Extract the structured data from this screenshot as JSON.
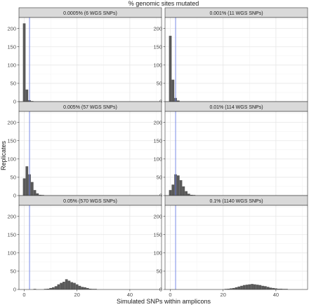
{
  "chart_data": {
    "type": "bar",
    "chart_kind": "faceted-histogram",
    "title": "% genomic sites mutated",
    "xlabel": "Simulated SNPs within amplicons",
    "ylabel": "Replicates",
    "xlim": [
      -2,
      52
    ],
    "ylim": [
      0,
      230
    ],
    "x_ticks": [
      0,
      20,
      40
    ],
    "y_ticks": [
      0,
      50,
      100,
      150,
      200
    ],
    "bin_width": 1,
    "reference_line": {
      "x": 2,
      "color": "#6b7fe6"
    },
    "bar_color": "#595959",
    "strip_fill": "#d9d9d9",
    "grid": true,
    "layout": {
      "rows": 3,
      "cols": 2
    },
    "facets": [
      {
        "label": "0.0005% (6 WGS SNPs)",
        "bins": [
          {
            "x": 0,
            "count": 214
          },
          {
            "x": 1,
            "count": 33
          },
          {
            "x": 2,
            "count": 4
          },
          {
            "x": 3,
            "count": 1
          }
        ]
      },
      {
        "label": "0.001% (11 WGS SNPs)",
        "bins": [
          {
            "x": 0,
            "count": 180
          },
          {
            "x": 1,
            "count": 60
          },
          {
            "x": 2,
            "count": 10
          },
          {
            "x": 3,
            "count": 3
          }
        ]
      },
      {
        "label": "0.005% (57 WGS SNPs)",
        "bins": [
          {
            "x": 0,
            "count": 47
          },
          {
            "x": 1,
            "count": 80
          },
          {
            "x": 2,
            "count": 58
          },
          {
            "x": 3,
            "count": 37
          },
          {
            "x": 4,
            "count": 15
          },
          {
            "x": 5,
            "count": 6
          },
          {
            "x": 6,
            "count": 2
          },
          {
            "x": 7,
            "count": 1
          }
        ]
      },
      {
        "label": "0.01% (114 WGS SNPs)",
        "bins": [
          {
            "x": 0,
            "count": 15
          },
          {
            "x": 1,
            "count": 30
          },
          {
            "x": 2,
            "count": 58
          },
          {
            "x": 3,
            "count": 55
          },
          {
            "x": 4,
            "count": 42
          },
          {
            "x": 5,
            "count": 25
          },
          {
            "x": 6,
            "count": 12
          },
          {
            "x": 7,
            "count": 5
          },
          {
            "x": 8,
            "count": 2
          },
          {
            "x": 9,
            "count": 1
          }
        ]
      },
      {
        "label": "0.05% (570 WGS SNPs)",
        "bins": [
          {
            "x": 4,
            "count": 1
          },
          {
            "x": 8,
            "count": 1
          },
          {
            "x": 9,
            "count": 2
          },
          {
            "x": 10,
            "count": 4
          },
          {
            "x": 11,
            "count": 6
          },
          {
            "x": 12,
            "count": 9
          },
          {
            "x": 13,
            "count": 14
          },
          {
            "x": 14,
            "count": 18
          },
          {
            "x": 15,
            "count": 21
          },
          {
            "x": 16,
            "count": 28
          },
          {
            "x": 17,
            "count": 24
          },
          {
            "x": 18,
            "count": 20
          },
          {
            "x": 19,
            "count": 18
          },
          {
            "x": 20,
            "count": 14
          },
          {
            "x": 21,
            "count": 10
          },
          {
            "x": 22,
            "count": 7
          },
          {
            "x": 23,
            "count": 6
          },
          {
            "x": 24,
            "count": 4
          },
          {
            "x": 25,
            "count": 2
          },
          {
            "x": 26,
            "count": 1
          },
          {
            "x": 27,
            "count": 1
          }
        ]
      },
      {
        "label": "0.1% (1140 WGS SNPs)",
        "bins": [
          {
            "x": 21,
            "count": 1
          },
          {
            "x": 22,
            "count": 2
          },
          {
            "x": 23,
            "count": 3
          },
          {
            "x": 24,
            "count": 4
          },
          {
            "x": 25,
            "count": 6
          },
          {
            "x": 26,
            "count": 8
          },
          {
            "x": 27,
            "count": 10
          },
          {
            "x": 28,
            "count": 12
          },
          {
            "x": 29,
            "count": 13
          },
          {
            "x": 30,
            "count": 14
          },
          {
            "x": 31,
            "count": 15
          },
          {
            "x": 32,
            "count": 14
          },
          {
            "x": 33,
            "count": 13
          },
          {
            "x": 34,
            "count": 12
          },
          {
            "x": 35,
            "count": 10
          },
          {
            "x": 36,
            "count": 9
          },
          {
            "x": 37,
            "count": 7
          },
          {
            "x": 38,
            "count": 5
          },
          {
            "x": 39,
            "count": 4
          },
          {
            "x": 40,
            "count": 3
          },
          {
            "x": 41,
            "count": 2
          },
          {
            "x": 42,
            "count": 2
          },
          {
            "x": 43,
            "count": 1
          },
          {
            "x": 44,
            "count": 1
          }
        ]
      }
    ]
  }
}
